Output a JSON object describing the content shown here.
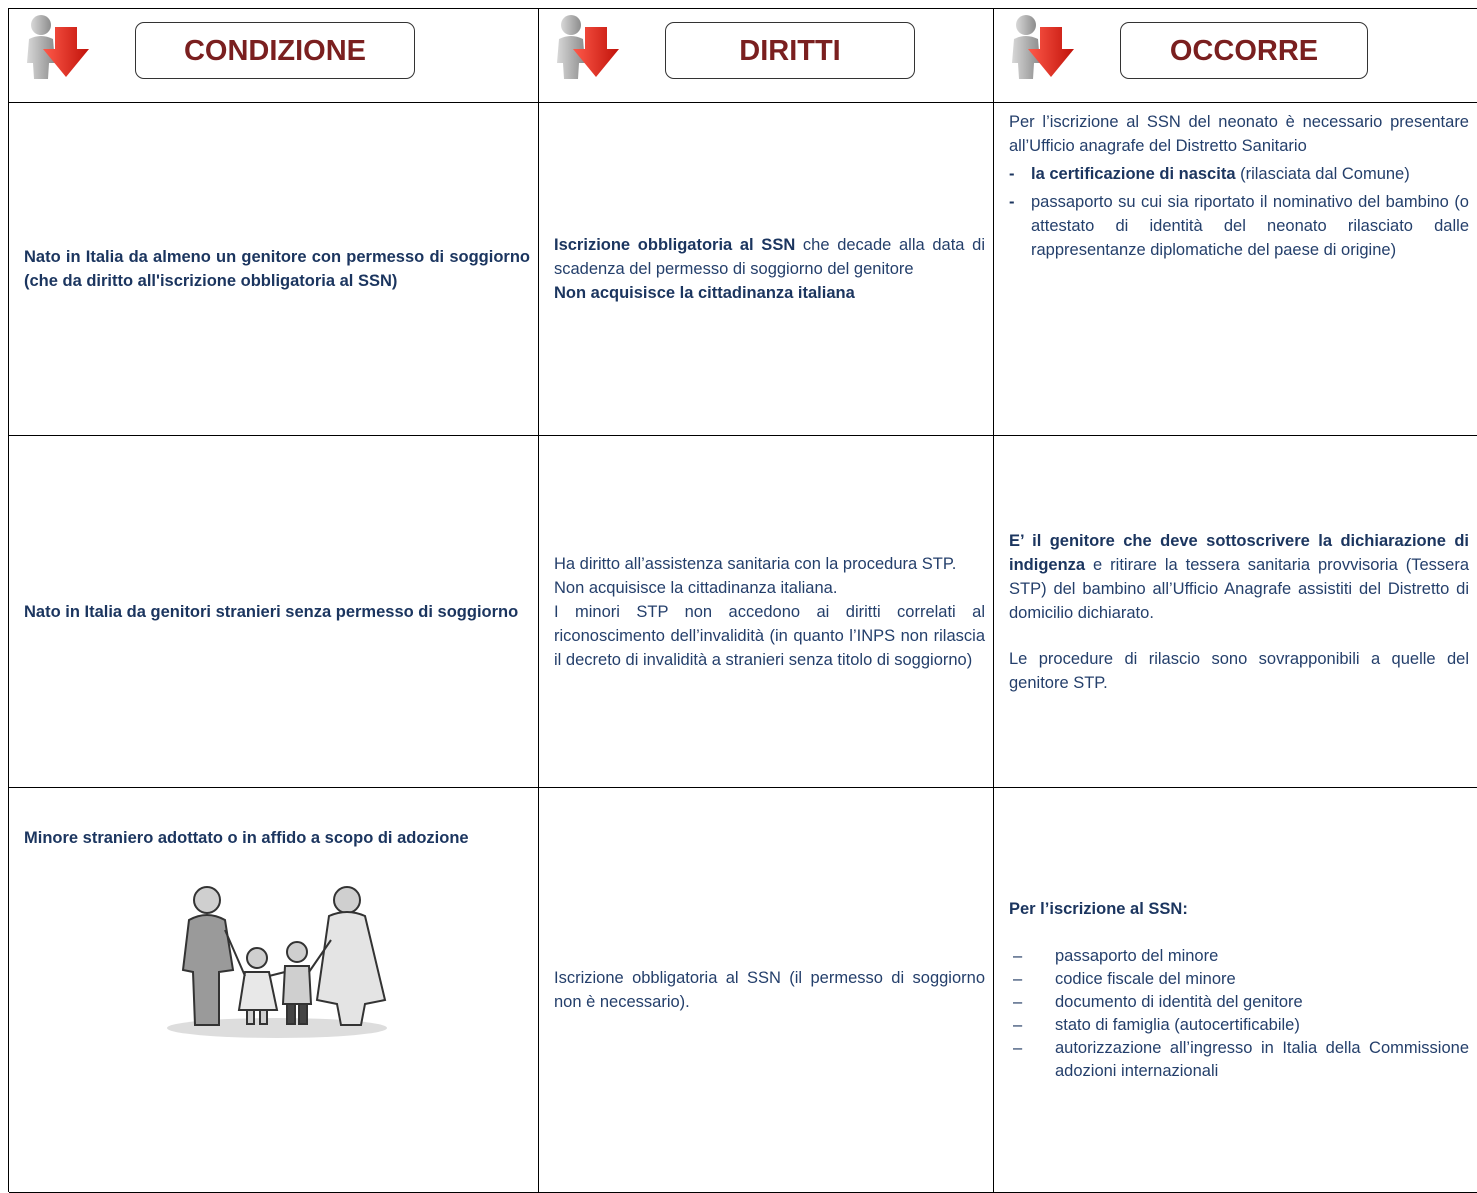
{
  "header": {
    "columns": [
      "CONDIZIONE",
      "DIRITTI",
      "OCCORRE"
    ]
  },
  "rows": [
    {
      "cells": [
        {
          "blocks": [
            {
              "runs": [
                {
                  "text": "Nato in Italia da almeno un genitore con permesso di soggiorno (che da diritto all'iscrizione obbligatoria al SSN)",
                  "bold": true
                }
              ]
            }
          ]
        },
        {
          "blocks": [
            {
              "runs": [
                {
                  "text": "Iscrizione obbligatoria al SSN",
                  "bold": true
                },
                {
                  "text": " che decade alla data di scadenza del permesso di soggiorno del genitore",
                  "bold": false
                }
              ]
            },
            {
              "runs": [
                {
                  "text": "Non acquisisce la cittadinanza italiana",
                  "bold": true
                }
              ]
            }
          ]
        },
        {
          "blocks": [
            {
              "runs": [
                {
                  "text": "Per l’iscrizione al SSN del neonato è necessario presentare all’Ufficio anagrafe del Distretto Sanitario",
                  "bold": false
                }
              ]
            },
            {
              "marker": "-",
              "runs": [
                {
                  "text": "la certificazione di nascita",
                  "bold": true
                },
                {
                  "text": " (rilasciata dal Comune)",
                  "bold": false
                }
              ]
            },
            {
              "marker": "-",
              "runs": [
                {
                  "text": "passaporto su cui sia riportato il nominativo del bambino (o attestato di identità del neonato rilasciato dalle rappresentanze diplomatiche del paese di origine)",
                  "bold": false
                }
              ]
            }
          ]
        }
      ]
    },
    {
      "cells": [
        {
          "blocks": [
            {
              "runs": [
                {
                  "text": "Nato in Italia da genitori stranieri senza permesso di soggiorno",
                  "bold": true
                }
              ]
            }
          ]
        },
        {
          "blocks": [
            {
              "runs": [
                {
                  "text": "Ha diritto all’assistenza sanitaria con la procedura STP.",
                  "bold": false
                }
              ]
            },
            {
              "runs": [
                {
                  "text": "Non acquisisce la cittadinanza italiana.",
                  "bold": false
                }
              ]
            },
            {
              "runs": [
                {
                  "text": "I minori STP non accedono ai diritti correlati al riconoscimento dell’invalidità (in quanto l’INPS non rilascia il decreto di invalidità a stranieri senza titolo di soggiorno)",
                  "bold": false
                }
              ]
            }
          ]
        },
        {
          "blocks": [
            {
              "runs": [
                {
                  "text": "E’ il genitore che deve sottoscrivere la dichiarazione di indigenza",
                  "bold": true
                },
                {
                  "text": " e ritirare la tessera sanitaria provvisoria (Tessera STP) del bambino all’Ufficio Anagrafe assistiti del Distretto di domicilio dichiarato.",
                  "bold": false
                }
              ]
            },
            {
              "runs": [
                {
                  "text": "Le procedure di rilascio sono sovrapponibili a quelle del genitore STP.",
                  "bold": false
                }
              ]
            }
          ]
        }
      ]
    },
    {
      "cells": [
        {
          "blocks": [
            {
              "runs": [
                {
                  "text": "Minore straniero adottato o in affido a scopo di adozione",
                  "bold": true
                }
              ]
            }
          ]
        },
        {
          "blocks": [
            {
              "runs": [
                {
                  "text": "Iscrizione obbligatoria al SSN (il permesso di soggiorno non è necessario).",
                  "bold": false
                }
              ]
            }
          ]
        },
        {
          "blocks": [
            {
              "runs": [
                {
                  "text": "Per l’iscrizione al SSN:",
                  "bold": true
                }
              ]
            },
            {
              "marker": "–",
              "runs": [
                {
                  "text": "passaporto del minore",
                  "bold": false
                }
              ]
            },
            {
              "marker": "–",
              "runs": [
                {
                  "text": "codice fiscale del minore",
                  "bold": false
                }
              ]
            },
            {
              "marker": "–",
              "runs": [
                {
                  "text": "documento di identità del genitore",
                  "bold": false
                }
              ]
            },
            {
              "marker": "–",
              "runs": [
                {
                  "text": "stato di famiglia (autocertificabile)",
                  "bold": false
                }
              ]
            },
            {
              "marker": "–",
              "runs": [
                {
                  "text": "autorizzazione all’ingresso in Italia della Commissione adozioni internazionali",
                  "bold": false
                }
              ]
            }
          ]
        }
      ]
    }
  ]
}
